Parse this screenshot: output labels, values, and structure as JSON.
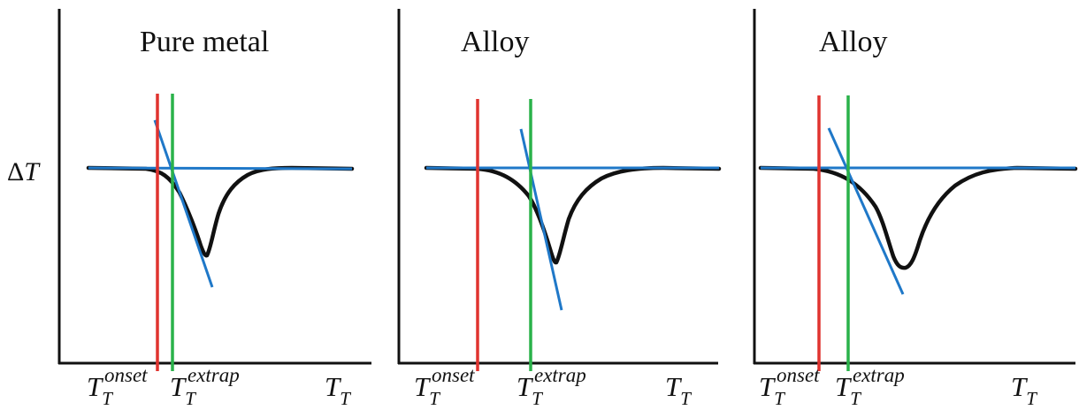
{
  "ylabel": {
    "delta": "Δ",
    "symbol": "T"
  },
  "colors": {
    "axis": "#111111",
    "curve": "#111111",
    "tangent": "#1f78c8",
    "onset_line": "#e0332f",
    "extrap_line": "#2ab24a"
  },
  "panels": [
    {
      "title": "Pure metal",
      "ticks": {
        "onset": {
          "main": "T",
          "sub": "T",
          "sup": "onset"
        },
        "extrap": {
          "main": "T",
          "sub": "T",
          "sup": "extrap"
        },
        "end": {
          "main": "T",
          "sub": "T"
        }
      }
    },
    {
      "title": "Alloy",
      "ticks": {
        "onset": {
          "main": "T",
          "sub": "T",
          "sup": "onset"
        },
        "extrap": {
          "main": "T",
          "sub": "T",
          "sup": "extrap"
        },
        "end": {
          "main": "T",
          "sub": "T"
        }
      }
    },
    {
      "title": "Alloy",
      "ticks": {
        "onset": {
          "main": "T",
          "sub": "T",
          "sup": "onset"
        },
        "extrap": {
          "main": "T",
          "sub": "T",
          "sup": "extrap"
        },
        "end": {
          "main": "T",
          "sub": "T"
        }
      }
    }
  ]
}
